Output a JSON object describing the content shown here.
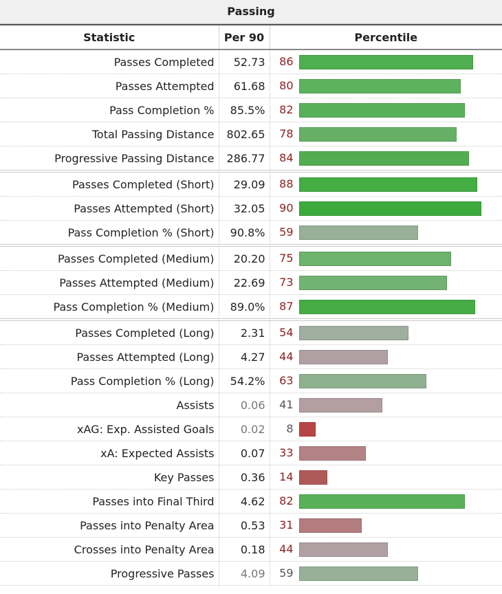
{
  "title": "Passing",
  "headers": {
    "statistic": "Statistic",
    "per90": "Per 90",
    "percentile": "Percentile"
  },
  "rows": [
    {
      "stat": "Passes Completed",
      "per90": "52.73",
      "pct": 86,
      "color": "#4fae4f",
      "group_start": false,
      "muted": false
    },
    {
      "stat": "Passes Attempted",
      "per90": "61.68",
      "pct": 80,
      "color": "#5db25d",
      "group_start": false,
      "muted": false
    },
    {
      "stat": "Pass Completion %",
      "per90": "85.5%",
      "pct": 82,
      "color": "#58b058",
      "group_start": false,
      "muted": false
    },
    {
      "stat": "Total Passing Distance",
      "per90": "802.65",
      "pct": 78,
      "color": "#66b066",
      "group_start": false,
      "muted": false
    },
    {
      "stat": "Progressive Passing Distance",
      "per90": "286.77",
      "pct": 84,
      "color": "#52ad52",
      "group_start": false,
      "muted": false
    },
    {
      "stat": "Passes Completed (Short)",
      "per90": "29.09",
      "pct": 88,
      "color": "#44ad44",
      "group_start": true,
      "muted": false
    },
    {
      "stat": "Passes Attempted (Short)",
      "per90": "32.05",
      "pct": 90,
      "color": "#3caa3c",
      "group_start": false,
      "muted": false
    },
    {
      "stat": "Pass Completion % (Short)",
      "per90": "90.8%",
      "pct": 59,
      "color": "#97b097",
      "group_start": false,
      "muted": false
    },
    {
      "stat": "Passes Completed (Medium)",
      "per90": "20.20",
      "pct": 75,
      "color": "#6db26d",
      "group_start": true,
      "muted": false
    },
    {
      "stat": "Passes Attempted (Medium)",
      "per90": "22.69",
      "pct": 73,
      "color": "#72b272",
      "group_start": false,
      "muted": false
    },
    {
      "stat": "Pass Completion % (Medium)",
      "per90": "89.0%",
      "pct": 87,
      "color": "#46ad46",
      "group_start": false,
      "muted": false
    },
    {
      "stat": "Passes Completed (Long)",
      "per90": "2.31",
      "pct": 54,
      "color": "#a0aea0",
      "group_start": true,
      "muted": false
    },
    {
      "stat": "Passes Attempted (Long)",
      "per90": "4.27",
      "pct": 44,
      "color": "#b09fa3",
      "group_start": false,
      "muted": false
    },
    {
      "stat": "Pass Completion % (Long)",
      "per90": "54.2%",
      "pct": 63,
      "color": "#8fb08f",
      "group_start": false,
      "muted": false
    },
    {
      "stat": "Assists",
      "per90": "0.06",
      "pct": 41,
      "color": "#b39ea1",
      "group_start": false,
      "muted": true
    },
    {
      "stat": "xAG: Exp. Assisted Goals",
      "per90": "0.02",
      "pct": 8,
      "color": "#b84545",
      "group_start": false,
      "muted": true
    },
    {
      "stat": "xA: Expected Assists",
      "per90": "0.07",
      "pct": 33,
      "color": "#b38385",
      "group_start": false,
      "muted": false
    },
    {
      "stat": "Key Passes",
      "per90": "0.36",
      "pct": 14,
      "color": "#b05959",
      "group_start": false,
      "muted": false
    },
    {
      "stat": "Passes into Final Third",
      "per90": "4.62",
      "pct": 82,
      "color": "#58b058",
      "group_start": false,
      "muted": false
    },
    {
      "stat": "Passes into Penalty Area",
      "per90": "0.53",
      "pct": 31,
      "color": "#b37c7e",
      "group_start": false,
      "muted": false
    },
    {
      "stat": "Crosses into Penalty Area",
      "per90": "0.18",
      "pct": 44,
      "color": "#b09fa3",
      "group_start": false,
      "muted": false
    },
    {
      "stat": "Progressive Passes",
      "per90": "4.09",
      "pct": 59,
      "color": "#97b097",
      "group_start": false,
      "muted": true
    }
  ]
}
